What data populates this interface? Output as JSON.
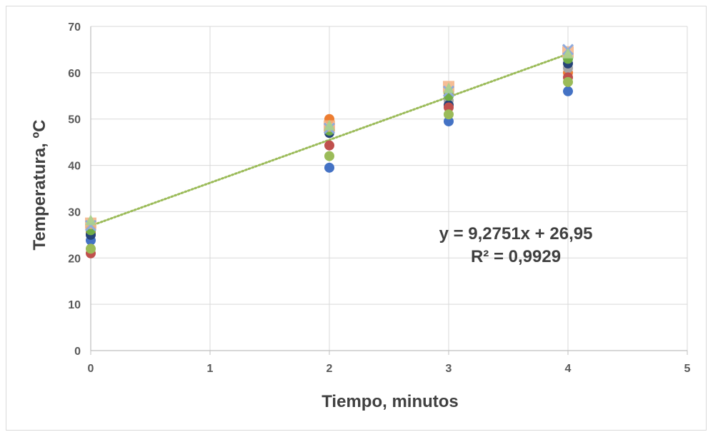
{
  "chart_data": {
    "type": "scatter",
    "xlabel": "Tiempo, minutos",
    "ylabel": "Temperatura, ºC",
    "xlim": [
      0,
      5
    ],
    "ylim": [
      0,
      70
    ],
    "x_ticks": [
      "0",
      "1",
      "2",
      "3",
      "4",
      "5"
    ],
    "y_ticks": [
      "0",
      "10",
      "20",
      "30",
      "40",
      "50",
      "60",
      "70"
    ],
    "grid": true,
    "legend": "none",
    "series": [
      {
        "color": "#4472c4",
        "marker": "circle",
        "points": [
          [
            0,
            23.8
          ],
          [
            2,
            39.5
          ],
          [
            3,
            49.5
          ],
          [
            4,
            56
          ]
        ]
      },
      {
        "color": "#ed7d31",
        "marker": "circle",
        "points": [
          [
            0,
            25.5
          ],
          [
            2,
            50
          ],
          [
            3,
            55.5
          ],
          [
            4,
            60
          ]
        ]
      },
      {
        "color": "#a5a5a5",
        "marker": "circle",
        "points": [
          [
            0,
            26.5
          ],
          [
            2,
            48
          ],
          [
            3,
            54
          ],
          [
            4,
            61
          ]
        ]
      },
      {
        "color": "#264478",
        "marker": "circle",
        "points": [
          [
            0,
            25
          ],
          [
            2,
            47
          ],
          [
            3,
            53
          ],
          [
            4,
            62
          ]
        ]
      },
      {
        "color": "#c0504d",
        "marker": "circle",
        "points": [
          [
            0,
            21
          ],
          [
            2,
            44.3
          ],
          [
            3,
            52.5
          ],
          [
            4,
            59
          ]
        ]
      },
      {
        "color": "#9bbb59",
        "marker": "circle",
        "points": [
          [
            0,
            22
          ],
          [
            2,
            42
          ],
          [
            3,
            51
          ],
          [
            4,
            58
          ]
        ]
      },
      {
        "color": "#70ad47",
        "marker": "circle",
        "points": [
          [
            0,
            26
          ],
          [
            2,
            47.5
          ],
          [
            3,
            55
          ],
          [
            4,
            63
          ]
        ]
      },
      {
        "color": "#f4b183",
        "marker": "square",
        "points": [
          [
            0,
            27.5
          ],
          [
            2,
            48.5
          ],
          [
            3,
            57
          ],
          [
            4,
            64.5
          ]
        ]
      },
      {
        "color": "#8faadc",
        "marker": "x",
        "points": [
          [
            0,
            27
          ],
          [
            2,
            48
          ],
          [
            3,
            56
          ],
          [
            4,
            65
          ]
        ]
      },
      {
        "color": "#a9d18e",
        "marker": "triangle",
        "points": [
          [
            0,
            28
          ],
          [
            2,
            48.5
          ],
          [
            3,
            56.5
          ],
          [
            4,
            64
          ]
        ]
      }
    ],
    "trendline": {
      "type": "linear",
      "slope": 9.2751,
      "intercept": 26.95,
      "x_range": [
        0,
        4
      ],
      "color": "#9bbb59",
      "style": "dotted",
      "equation_label": "y = 9,2751x + 26,95",
      "r2_label": "R² = 0,9929"
    }
  }
}
